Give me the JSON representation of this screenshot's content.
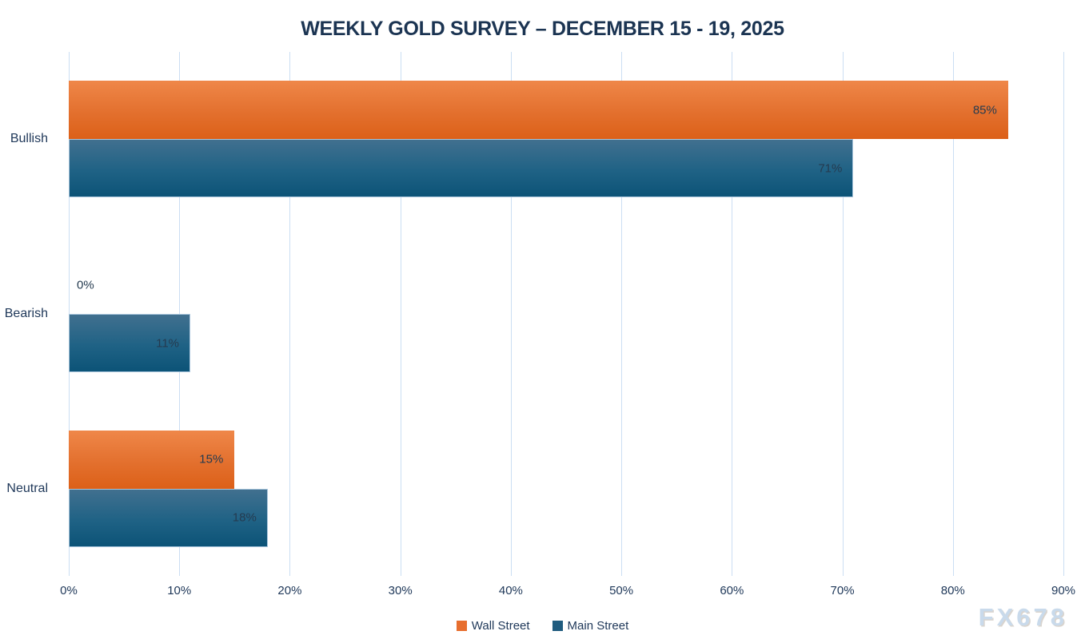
{
  "title": "WEEKLY GOLD SURVEY – DECEMBER 15 - 19, 2025",
  "watermark": "FX678",
  "colors": {
    "wall_street": "#E76E2E",
    "wall_street_gradient_top": "#EF8749",
    "wall_street_gradient_bottom": "#DC6018",
    "main_street": "#205C7F",
    "main_street_gradient_top": "#41708F",
    "main_street_gradient_bottom": "#0C5377",
    "title_text": "#1B3452",
    "axis_text": "#20395A",
    "data_label_text": "#253B50",
    "gridline": "#CBDEF3",
    "watermark_text": "#C9DAEB"
  },
  "chart_data": {
    "type": "bar",
    "orientation": "horizontal",
    "title": "WEEKLY GOLD SURVEY – DECEMBER 15 - 19, 2025",
    "categories": [
      "Bullish",
      "Bearish",
      "Neutral"
    ],
    "series": [
      {
        "name": "Wall Street",
        "color": "#E76E2E",
        "values": [
          85,
          0,
          15
        ]
      },
      {
        "name": "Main Street",
        "color": "#205C7F",
        "values": [
          71,
          11,
          18
        ]
      }
    ],
    "data_labels": [
      "85%",
      "0%",
      "15%",
      "71%",
      "11%",
      "18%"
    ],
    "value_suffix": "%",
    "xlim": [
      0,
      90
    ],
    "x_ticks": [
      "0%",
      "10%",
      "20%",
      "30%",
      "40%",
      "50%",
      "60%",
      "70%",
      "80%",
      "90%"
    ],
    "grid": true,
    "legend_position": "bottom",
    "legend_entries": [
      "Wall Street",
      "Main Street"
    ]
  }
}
